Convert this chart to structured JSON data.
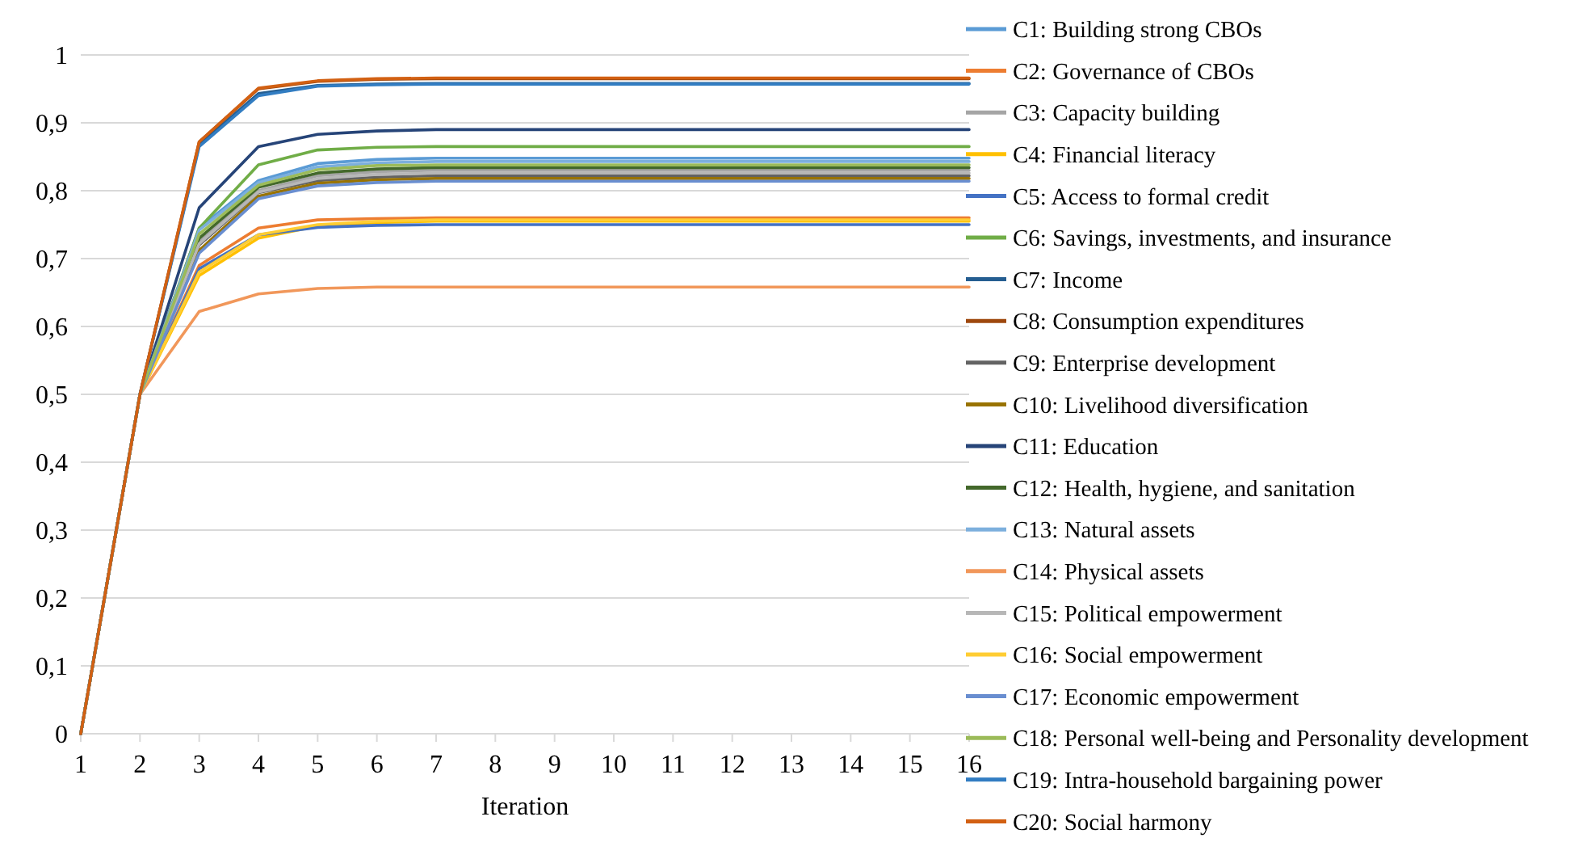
{
  "chart_data": {
    "type": "line",
    "xlabel": "Iteration",
    "x": [
      1,
      2,
      3,
      4,
      5,
      6,
      7,
      8,
      9,
      10,
      11,
      12,
      13,
      14,
      15,
      16
    ],
    "xlim": [
      1,
      16
    ],
    "xticks": [
      1,
      2,
      3,
      4,
      5,
      6,
      7,
      8,
      9,
      10,
      11,
      12,
      13,
      14,
      15,
      16
    ],
    "ylim": [
      0,
      1
    ],
    "yticks": [
      0,
      {
        "value": 0.1,
        "label": "0,1"
      },
      {
        "value": 0.2,
        "label": "0,2"
      },
      {
        "value": 0.3,
        "label": "0,3"
      },
      {
        "value": 0.4,
        "label": "0,4"
      },
      {
        "value": 0.5,
        "label": "0,5"
      },
      {
        "value": 0.6,
        "label": "0,6"
      },
      {
        "value": 0.7,
        "label": "0,7"
      },
      {
        "value": 0.8,
        "label": "0,8"
      },
      {
        "value": 0.9,
        "label": "0,9"
      },
      1
    ],
    "grid": "y",
    "legend": "right",
    "marker": "none",
    "line_style": "solid",
    "series": [
      {
        "name": "C1: Building strong CBOs",
        "color": "#5b9bd5",
        "values": [
          0,
          0.5,
          0.745,
          0.815,
          0.84,
          0.846,
          0.848,
          0.848,
          0.848,
          0.848,
          0.848,
          0.848,
          0.848,
          0.848,
          0.848,
          0.848
        ]
      },
      {
        "name": "C2: Governance of CBOs",
        "color": "#ed7d31",
        "values": [
          0,
          0.5,
          0.69,
          0.745,
          0.757,
          0.759,
          0.76,
          0.76,
          0.76,
          0.76,
          0.76,
          0.76,
          0.76,
          0.76,
          0.76,
          0.76
        ]
      },
      {
        "name": "C3: Capacity building",
        "color": "#a5a5a5",
        "values": [
          0,
          0.5,
          0.725,
          0.8,
          0.822,
          0.828,
          0.83,
          0.83,
          0.83,
          0.83,
          0.83,
          0.83,
          0.83,
          0.83,
          0.83,
          0.83
        ]
      },
      {
        "name": "C4: Financial literacy",
        "color": "#ffc000",
        "values": [
          0,
          0.5,
          0.675,
          0.73,
          0.748,
          0.753,
          0.755,
          0.755,
          0.755,
          0.755,
          0.755,
          0.755,
          0.755,
          0.755,
          0.755,
          0.755
        ]
      },
      {
        "name": "C5: Access to formal credit",
        "color": "#4472c4",
        "values": [
          0,
          0.5,
          0.685,
          0.735,
          0.746,
          0.749,
          0.75,
          0.75,
          0.75,
          0.75,
          0.75,
          0.75,
          0.75,
          0.75,
          0.75,
          0.75
        ]
      },
      {
        "name": "C6: Savings, investments, and insurance",
        "color": "#70ad47",
        "values": [
          0,
          0.5,
          0.745,
          0.838,
          0.86,
          0.864,
          0.865,
          0.865,
          0.865,
          0.865,
          0.865,
          0.865,
          0.865,
          0.865,
          0.865,
          0.865
        ]
      },
      {
        "name": "C7: Income",
        "color": "#255e91",
        "values": [
          0,
          0.5,
          0.868,
          0.943,
          0.955,
          0.957,
          0.958,
          0.958,
          0.958,
          0.958,
          0.958,
          0.958,
          0.958,
          0.958,
          0.958,
          0.958
        ]
      },
      {
        "name": "C8: Consumption expenditures",
        "color": "#9e480e",
        "values": [
          0,
          0.5,
          0.872,
          0.95,
          0.961,
          0.964,
          0.965,
          0.965,
          0.965,
          0.965,
          0.965,
          0.965,
          0.965,
          0.965,
          0.965,
          0.965
        ]
      },
      {
        "name": "C9: Enterprise development",
        "color": "#636363",
        "values": [
          0,
          0.5,
          0.72,
          0.797,
          0.815,
          0.82,
          0.822,
          0.822,
          0.822,
          0.822,
          0.822,
          0.822,
          0.822,
          0.822,
          0.822,
          0.822
        ]
      },
      {
        "name": "C10: Livelihood diversification",
        "color": "#997300",
        "values": [
          0,
          0.5,
          0.712,
          0.792,
          0.811,
          0.816,
          0.818,
          0.818,
          0.818,
          0.818,
          0.818,
          0.818,
          0.818,
          0.818,
          0.818,
          0.818
        ]
      },
      {
        "name": "C11: Education",
        "color": "#264478",
        "values": [
          0,
          0.5,
          0.775,
          0.865,
          0.883,
          0.888,
          0.89,
          0.89,
          0.89,
          0.89,
          0.89,
          0.89,
          0.89,
          0.89,
          0.89,
          0.89
        ]
      },
      {
        "name": "C12: Health, hygiene, and sanitation",
        "color": "#43682b",
        "values": [
          0,
          0.5,
          0.73,
          0.805,
          0.826,
          0.832,
          0.834,
          0.834,
          0.834,
          0.834,
          0.834,
          0.834,
          0.834,
          0.834,
          0.834,
          0.834
        ]
      },
      {
        "name": "C13: Natural assets",
        "color": "#7cafdd",
        "values": [
          0,
          0.5,
          0.742,
          0.812,
          0.835,
          0.841,
          0.843,
          0.843,
          0.843,
          0.843,
          0.843,
          0.843,
          0.843,
          0.843,
          0.843,
          0.843
        ]
      },
      {
        "name": "C14: Physical assets",
        "color": "#f1975a",
        "values": [
          0,
          0.5,
          0.622,
          0.648,
          0.656,
          0.658,
          0.658,
          0.658,
          0.658,
          0.658,
          0.658,
          0.658,
          0.658,
          0.658,
          0.658,
          0.658
        ]
      },
      {
        "name": "C15: Political empowerment",
        "color": "#b7b7b7",
        "values": [
          0,
          0.5,
          0.722,
          0.798,
          0.818,
          0.824,
          0.826,
          0.826,
          0.826,
          0.826,
          0.826,
          0.826,
          0.826,
          0.826,
          0.826,
          0.826
        ]
      },
      {
        "name": "C16: Social empowerment",
        "color": "#ffcd33",
        "values": [
          0,
          0.5,
          0.68,
          0.735,
          0.75,
          0.755,
          0.757,
          0.757,
          0.757,
          0.757,
          0.757,
          0.757,
          0.757,
          0.757,
          0.757,
          0.757
        ]
      },
      {
        "name": "C17: Economic empowerment",
        "color": "#698ed0",
        "values": [
          0,
          0.5,
          0.708,
          0.788,
          0.807,
          0.812,
          0.814,
          0.814,
          0.814,
          0.814,
          0.814,
          0.814,
          0.814,
          0.814,
          0.814,
          0.814
        ]
      },
      {
        "name": "C18: Personal well-being and Personality development",
        "color": "#9bbb59",
        "values": [
          0,
          0.5,
          0.736,
          0.808,
          0.831,
          0.837,
          0.838,
          0.838,
          0.838,
          0.838,
          0.838,
          0.838,
          0.838,
          0.838,
          0.838,
          0.838
        ]
      },
      {
        "name": "C19: Intra-household bargaining power",
        "color": "#327dc2",
        "values": [
          0,
          0.5,
          0.865,
          0.94,
          0.954,
          0.956,
          0.957,
          0.957,
          0.957,
          0.957,
          0.957,
          0.957,
          0.957,
          0.957,
          0.957,
          0.957
        ]
      },
      {
        "name": "C20: Social harmony",
        "color": "#d26012",
        "values": [
          0,
          0.5,
          0.872,
          0.951,
          0.962,
          0.965,
          0.966,
          0.966,
          0.966,
          0.966,
          0.966,
          0.966,
          0.966,
          0.966,
          0.966,
          0.966
        ]
      }
    ]
  }
}
